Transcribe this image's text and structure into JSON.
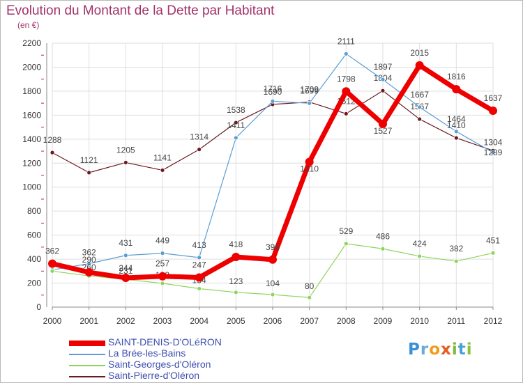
{
  "header": {
    "title": "Evolution du Montant de la Dette par Habitant",
    "unit": "(en €)"
  },
  "logo": {
    "text": "Proxiti"
  },
  "colors": {
    "title": "#a3326b",
    "grid": "#dedede",
    "axis": "#888888"
  },
  "chart_data": {
    "type": "line",
    "title": "Evolution du Montant de la Dette par Habitant",
    "ylabel": "(en €)",
    "categories": [
      "2000",
      "2001",
      "2002",
      "2003",
      "2004",
      "2005",
      "2006",
      "2007",
      "2008",
      "2009",
      "2010",
      "2011",
      "2012"
    ],
    "ylim": [
      0,
      2200
    ],
    "yticks": [
      0,
      200,
      400,
      600,
      800,
      1000,
      1200,
      1400,
      1600,
      1800,
      2000,
      2200
    ],
    "grid": true,
    "legend_position": "bottom-left",
    "series": [
      {
        "name": "Saint-Pierre-d'Oléron",
        "color": "#6b1a22",
        "values": [
          1288,
          1121,
          1205,
          1141,
          1314,
          1538,
          1690,
          1709,
          1612,
          1804,
          1567,
          1410,
          1304
        ],
        "labels": [
          "1288",
          "1121",
          "1205",
          "1141",
          "1314",
          "1538",
          "1690",
          "1709",
          "1612",
          "1804",
          "1567",
          "1410",
          "1304"
        ],
        "emphasis": false
      },
      {
        "name": "La Brée-les-Bains",
        "color": "#5b9ed3",
        "values": [
          310,
          362,
          431,
          449,
          413,
          1411,
          1716,
          1699,
          2111,
          1897,
          1667,
          1464,
          1289
        ],
        "labels": [
          "",
          "362",
          "431",
          "449",
          "413",
          "1411",
          "1716",
          "1699",
          "2111",
          "1897",
          "1667",
          "1464",
          "1289"
        ],
        "emphasis": false
      },
      {
        "name": "Saint-Georges-d'Oléron",
        "color": "#8ed45c",
        "values": [
          300,
          260,
          231,
          198,
          154,
          123,
          104,
          80,
          529,
          486,
          424,
          382,
          451
        ],
        "labels": [
          "",
          "260",
          "231",
          "198",
          "154",
          "123",
          "104",
          "80",
          "529",
          "486",
          "424",
          "382",
          "451"
        ],
        "emphasis": false
      },
      {
        "name": "SAINT-DENIS-D'OLéRON",
        "color": "#ee0000",
        "values": [
          362,
          290,
          244,
          257,
          247,
          418,
          396,
          1210,
          1798,
          1527,
          2015,
          1816,
          1637
        ],
        "labels": [
          "362",
          "290",
          "244",
          "257",
          "247",
          "418",
          "396",
          "1210",
          "1798",
          "1527",
          "2015",
          "1816",
          "1637"
        ],
        "emphasis": true
      }
    ],
    "legend": [
      {
        "name": "SAINT-DENIS-D'OLéRON",
        "color": "#ee0000",
        "emphasis": true
      },
      {
        "name": "La Brée-les-Bains",
        "color": "#5b9ed3",
        "emphasis": false
      },
      {
        "name": "Saint-Georges-d'Oléron",
        "color": "#8ed45c",
        "emphasis": false
      },
      {
        "name": "Saint-Pierre-d'Oléron",
        "color": "#6b1a22",
        "emphasis": false
      }
    ]
  }
}
